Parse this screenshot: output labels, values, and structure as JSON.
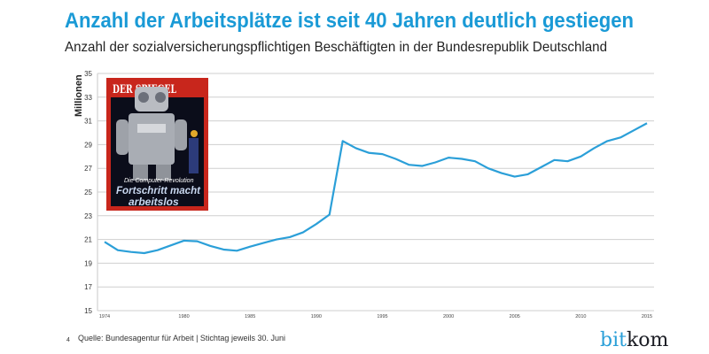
{
  "header": {
    "title": "Anzahl der Arbeitsplätze ist seit 40 Jahren deutlich gestiegen",
    "subtitle": "Anzahl der sozialversicherungspflichtigen Beschäftigten in der Bundesrepublik Deutschland"
  },
  "colors": {
    "title": "#1a9ad6",
    "line": "#2b9fd8",
    "grid": "#c8c8c8",
    "text": "#222222"
  },
  "cover": {
    "masthead": "DER SPIEGEL",
    "kicker": "Die Computer-Revolution",
    "headline_1": "Fortschritt macht",
    "headline_2": "arbeitslos"
  },
  "chart_data": {
    "type": "line",
    "ylabel": "Millionen",
    "ylim": [
      15,
      35
    ],
    "xlim": [
      1974,
      2015
    ],
    "grid": true,
    "yticks": [
      15,
      17,
      19,
      21,
      23,
      25,
      27,
      29,
      31,
      33,
      35
    ],
    "xticks": [
      1974,
      1980,
      1985,
      1990,
      1995,
      2000,
      2005,
      2010,
      2015
    ],
    "x": [
      1974,
      1975,
      1976,
      1977,
      1978,
      1979,
      1980,
      1981,
      1982,
      1983,
      1984,
      1985,
      1986,
      1987,
      1988,
      1989,
      1990,
      1991,
      1992,
      1993,
      1994,
      1995,
      1996,
      1997,
      1998,
      1999,
      2000,
      2001,
      2002,
      2003,
      2004,
      2005,
      2006,
      2007,
      2008,
      2009,
      2010,
      2011,
      2012,
      2013,
      2014,
      2015
    ],
    "values": [
      20.8,
      20.1,
      19.95,
      19.85,
      20.1,
      20.5,
      20.9,
      20.85,
      20.45,
      20.15,
      20.05,
      20.4,
      20.7,
      21.0,
      21.2,
      21.6,
      22.3,
      23.1,
      29.3,
      28.7,
      28.3,
      28.2,
      27.8,
      27.3,
      27.2,
      27.5,
      27.9,
      27.8,
      27.6,
      27.0,
      26.6,
      26.3,
      26.5,
      27.1,
      27.7,
      27.6,
      28.0,
      28.7,
      29.3,
      29.6,
      30.2,
      30.8
    ]
  },
  "footer": {
    "page_number": "4",
    "source": "Quelle: Bundesagentur für Arbeit | Stichtag jeweils 30. Juni",
    "logo_part1": "bit",
    "logo_part2": "kom"
  }
}
